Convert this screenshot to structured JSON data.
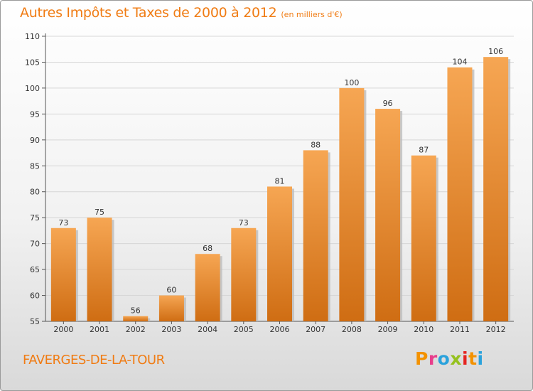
{
  "header": {
    "title": "Autres Impôts et Taxes de 2000 à 2012",
    "subtitle": "(en milliers d'€)"
  },
  "footer": {
    "commune": "FAVERGES-DE-LA-TOUR",
    "logo_text": "Proxiti",
    "logo_letter_colors": [
      "#f39200",
      "#e83e8c",
      "#2aa2dc",
      "#95c11f",
      "#e52421",
      "#f39200",
      "#2aa2dc"
    ]
  },
  "colors": {
    "title": "#f07c14",
    "bar_top": "#f6a653",
    "bar_bottom": "#cf6d13",
    "bar_shadow": "#bdbdbd"
  },
  "chart_data": {
    "type": "bar",
    "categories": [
      "2000",
      "2001",
      "2002",
      "2003",
      "2004",
      "2005",
      "2006",
      "2007",
      "2008",
      "2009",
      "2010",
      "2011",
      "2012"
    ],
    "values": [
      73,
      75,
      56,
      60,
      68,
      73,
      81,
      88,
      100,
      96,
      87,
      104,
      106
    ],
    "data_labels": [
      "73",
      "75",
      "56",
      "60",
      "68",
      "73",
      "81",
      "88",
      "100",
      "96",
      "87",
      "104",
      "106"
    ],
    "ylim": [
      55,
      110
    ],
    "yticks": [
      55,
      60,
      65,
      70,
      75,
      80,
      85,
      90,
      95,
      100,
      105,
      110
    ],
    "ytick_labels": [
      "55",
      "60",
      "65",
      "70",
      "75",
      "80",
      "85",
      "90",
      "95",
      "100",
      "105",
      "110"
    ],
    "xlabel": "",
    "ylabel": "",
    "grid": true,
    "legend": "none"
  }
}
